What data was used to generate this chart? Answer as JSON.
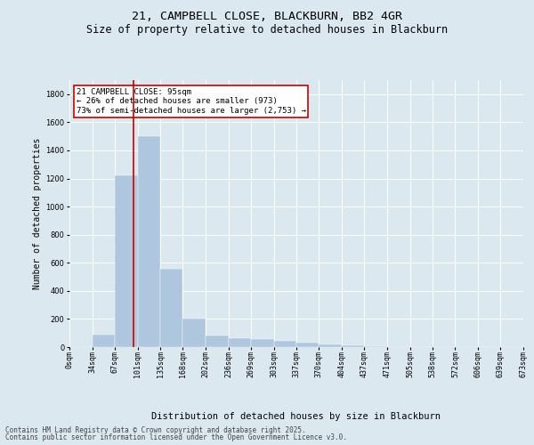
{
  "title1": "21, CAMPBELL CLOSE, BLACKBURN, BB2 4GR",
  "title2": "Size of property relative to detached houses in Blackburn",
  "xlabel": "Distribution of detached houses by size in Blackburn",
  "ylabel": "Number of detached properties",
  "bar_color": "#aec6de",
  "vline_color": "#cc0000",
  "annotation_box_color": "#cc0000",
  "plot_bg_color": "#dce8f0",
  "fig_bg_color": "#dce8f0",
  "grid_color": "#ffffff",
  "bins": [
    0,
    34,
    67,
    101,
    135,
    168,
    202,
    236,
    269,
    303,
    337,
    370,
    404,
    437,
    471,
    505,
    538,
    572,
    606,
    639,
    673
  ],
  "values": [
    0,
    90,
    1220,
    1500,
    560,
    200,
    80,
    62,
    55,
    45,
    30,
    20,
    10,
    5,
    3,
    2,
    1,
    1,
    0,
    0
  ],
  "vline_x": 95,
  "annotation_lines": [
    "21 CAMPBELL CLOSE: 95sqm",
    "← 26% of detached houses are smaller (973)",
    "73% of semi-detached houses are larger (2,753) →"
  ],
  "ylim": [
    0,
    1900
  ],
  "yticks": [
    0,
    200,
    400,
    600,
    800,
    1000,
    1200,
    1400,
    1600,
    1800
  ],
  "footer1": "Contains HM Land Registry data © Crown copyright and database right 2025.",
  "footer2": "Contains public sector information licensed under the Open Government Licence v3.0.",
  "title1_fontsize": 9.5,
  "title2_fontsize": 8.5,
  "tick_fontsize": 6,
  "xlabel_fontsize": 7.5,
  "ylabel_fontsize": 7,
  "footer_fontsize": 5.5,
  "annotation_fontsize": 6.5
}
